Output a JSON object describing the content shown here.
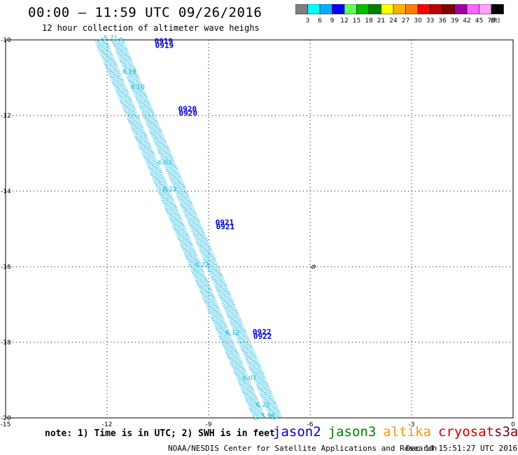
{
  "title": "00:00 – 11:59 UTC 09/26/2016",
  "subtitle": "12 hour collection of altimeter wave heighs",
  "colorbar": {
    "colors": [
      "#808080",
      "#00ffff",
      "#00b0ff",
      "#0000ff",
      "#60ff60",
      "#00c000",
      "#008000",
      "#ffff00",
      "#ffb000",
      "#ff8000",
      "#ff0000",
      "#c00000",
      "#800000",
      "#a000a0",
      "#ff60ff",
      "#ffa0ff",
      "#000000"
    ],
    "labels": [
      "3",
      "6",
      "9",
      "12",
      "15",
      "18",
      "21",
      "24",
      "27",
      "30",
      "33",
      "36",
      "39",
      "42",
      "45",
      "70"
    ],
    "unit": "(ft)"
  },
  "map": {
    "lon_min": -15,
    "lon_max": 0,
    "lat_min": -20,
    "lat_max": -10,
    "x_ticks": [
      {
        "value": -15,
        "label": "-15"
      },
      {
        "value": -12,
        "label": "-12"
      },
      {
        "value": -9,
        "label": "-9"
      },
      {
        "value": -6,
        "label": "-6"
      },
      {
        "value": -3,
        "label": "-3"
      },
      {
        "value": 0,
        "label": "0"
      }
    ],
    "y_ticks": [
      {
        "value": -10,
        "label": "-10"
      },
      {
        "value": -12,
        "label": "-12"
      },
      {
        "value": -14,
        "label": "-14"
      },
      {
        "value": -16,
        "label": "-16"
      },
      {
        "value": -18,
        "label": "-18"
      },
      {
        "value": -20,
        "label": "-20"
      }
    ],
    "tracks": [
      {
        "start": [
          -12.2,
          -10.0
        ],
        "end": [
          -7.5,
          -20.0
        ]
      },
      {
        "start": [
          -11.7,
          -10.0
        ],
        "end": [
          -7.0,
          -20.0
        ]
      }
    ],
    "track_labels": [
      {
        "text": "5.71",
        "lon": -12.1,
        "lat": -10.0
      },
      {
        "text": "6.19",
        "lon": -11.55,
        "lat": -10.9
      },
      {
        "text": "6.10",
        "lon": -11.3,
        "lat": -11.3
      },
      {
        "text": "6.03",
        "lon": -10.5,
        "lat": -13.3
      },
      {
        "text": "6.12",
        "lon": -10.35,
        "lat": -14.0
      },
      {
        "text": "6.22",
        "lon": -9.4,
        "lat": -16.0
      },
      {
        "text": "6.12",
        "lon": -8.5,
        "lat": -17.8
      },
      {
        "text": "6.07",
        "lon": -8.0,
        "lat": -19.0
      },
      {
        "text": "6.21",
        "lon": -7.6,
        "lat": -19.7
      },
      {
        "text": "5.96",
        "lon": -7.45,
        "lat": -20.0
      }
    ],
    "date_labels": [
      {
        "text": "0919",
        "lon": -10.6,
        "lat": -10.1
      },
      {
        "text": "0920",
        "lon": -9.9,
        "lat": -11.9
      },
      {
        "text": "0921",
        "lon": -8.8,
        "lat": -14.9
      },
      {
        "text": "0922",
        "lon": -7.7,
        "lat": -17.8
      }
    ],
    "marker": {
      "lon": -5.9,
      "lat": -16.0
    }
  },
  "note": "note: 1) Time is in UTC; 2) SWH is in feet",
  "legend": [
    {
      "name": "jason2",
      "color": "#0000cc"
    },
    {
      "name": "jason3",
      "color": "#008000"
    },
    {
      "name": "altika",
      "color": "#ff9900"
    },
    {
      "name": "cryosat",
      "color": "#cc0000"
    },
    {
      "name": "s3a",
      "color": "#800000"
    }
  ],
  "footer": "NOAA/NESDIS Center for Satellite Applications and Research",
  "footer_time": "Dec 14 15:51:27 UTC 2016"
}
